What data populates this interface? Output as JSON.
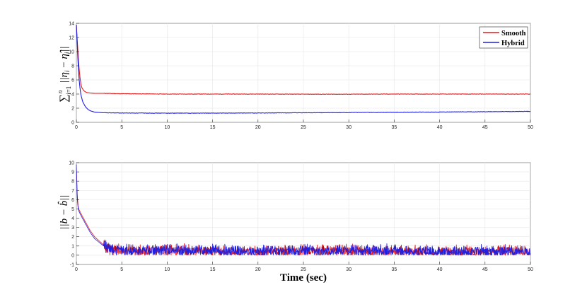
{
  "chart_data": [
    {
      "type": "line",
      "ylabel": "∑ᵢ₌₁ⁿ ||ηᵢ − η̂ᵢ||",
      "xlabel": "",
      "xlim": [
        0,
        50
      ],
      "ylim": [
        0,
        14
      ],
      "xticks": [
        0,
        5,
        10,
        15,
        20,
        25,
        30,
        35,
        40,
        45,
        50
      ],
      "yticks": [
        0,
        2,
        4,
        6,
        8,
        10,
        12,
        14
      ],
      "grid": true,
      "legend_position": "top-right",
      "series": [
        {
          "name": "Smooth",
          "color": "#e31a1c",
          "x": [
            0,
            0.1,
            0.2,
            0.3,
            0.4,
            0.5,
            0.6,
            0.8,
            1.0,
            1.2,
            1.5,
            2,
            3,
            5,
            10,
            15,
            20,
            25,
            30,
            35,
            40,
            45,
            50
          ],
          "y": [
            13.8,
            11.5,
            9.4,
            7.6,
            6.3,
            5.4,
            4.9,
            4.5,
            4.3,
            4.2,
            4.15,
            4.1,
            4.1,
            4.05,
            4.0,
            4.0,
            4.0,
            3.98,
            3.98,
            4.0,
            4.0,
            4.0,
            4.0
          ]
        },
        {
          "name": "Hybrid",
          "color": "#1f1fe0",
          "x": [
            0,
            0.1,
            0.2,
            0.3,
            0.4,
            0.5,
            0.7,
            1.0,
            1.3,
            1.6,
            2,
            3,
            5,
            10,
            15,
            20,
            25,
            30,
            35,
            40,
            45,
            50
          ],
          "y": [
            13.8,
            10.8,
            8.0,
            6.1,
            4.8,
            3.9,
            2.9,
            2.2,
            1.8,
            1.6,
            1.45,
            1.35,
            1.32,
            1.3,
            1.3,
            1.32,
            1.35,
            1.38,
            1.42,
            1.46,
            1.5,
            1.55
          ]
        }
      ]
    },
    {
      "type": "line",
      "ylabel": "||b − b̂||",
      "xlabel": "Time (sec)",
      "xlim": [
        0,
        50
      ],
      "ylim": [
        -1,
        10
      ],
      "xticks": [
        0,
        5,
        10,
        15,
        20,
        25,
        30,
        35,
        40,
        45,
        50
      ],
      "yticks": [
        -1,
        0,
        1,
        2,
        3,
        4,
        5,
        6,
        7,
        8,
        9,
        10
      ],
      "grid": true,
      "series": [
        {
          "name": "Smooth",
          "color": "#e31a1c",
          "x": [
            0,
            0.1,
            0.2,
            0.3,
            0.5,
            1,
            1.5,
            2,
            3,
            4,
            5,
            8,
            10,
            15,
            20,
            25,
            30,
            35,
            40,
            45,
            50
          ],
          "y": [
            9.5,
            6.5,
            5.2,
            4.9,
            4.5,
            3.6,
            2.7,
            2.0,
            1.1,
            0.6,
            0.45,
            0.5,
            0.55,
            0.45,
            0.35,
            0.45,
            0.45,
            0.4,
            0.35,
            0.4,
            0.4
          ]
        },
        {
          "name": "Hybrid",
          "color": "#1f1fe0",
          "x": [
            0,
            0.1,
            0.2,
            0.3,
            0.5,
            1,
            1.5,
            2,
            3,
            4,
            5,
            8,
            10,
            15,
            20,
            25,
            30,
            35,
            40,
            45,
            50
          ],
          "y": [
            9.8,
            6.0,
            5.0,
            4.7,
            4.3,
            3.4,
            2.5,
            1.8,
            1.0,
            0.55,
            0.45,
            0.55,
            0.6,
            0.45,
            0.35,
            0.45,
            0.5,
            0.45,
            0.3,
            0.4,
            0.4
          ]
        }
      ]
    }
  ]
}
